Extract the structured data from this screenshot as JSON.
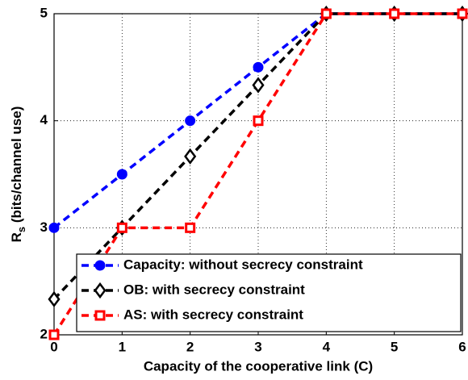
{
  "chart_data": {
    "type": "line",
    "xlabel": "Capacity of the cooperative link (C)",
    "ylabel": {
      "main": "R",
      "sub": "s",
      "rest": " (bits/channel use)"
    },
    "x": [
      0,
      1,
      2,
      3,
      4,
      5,
      6
    ],
    "series": [
      {
        "name": "Capacity: without secrecy constraint",
        "color": "#0000ff",
        "marker": "circle",
        "values": [
          3,
          3.5,
          4,
          4.5,
          5,
          5,
          5
        ]
      },
      {
        "name": "OB: with secrecy constraint",
        "color": "#000000",
        "marker": "diamond",
        "values": [
          2.333,
          3,
          3.667,
          4.333,
          5,
          5,
          5
        ]
      },
      {
        "name": "AS: with secrecy constraint",
        "color": "#ff0000",
        "marker": "square",
        "values": [
          2,
          3,
          3,
          4,
          5,
          5,
          5
        ]
      }
    ],
    "xlim": [
      0,
      6
    ],
    "xticks": [
      0,
      1,
      2,
      3,
      4,
      5,
      6
    ],
    "ylim": [
      2,
      5
    ],
    "yticks": [
      2,
      3,
      4,
      5
    ],
    "grid": true,
    "legend": "lower right"
  }
}
